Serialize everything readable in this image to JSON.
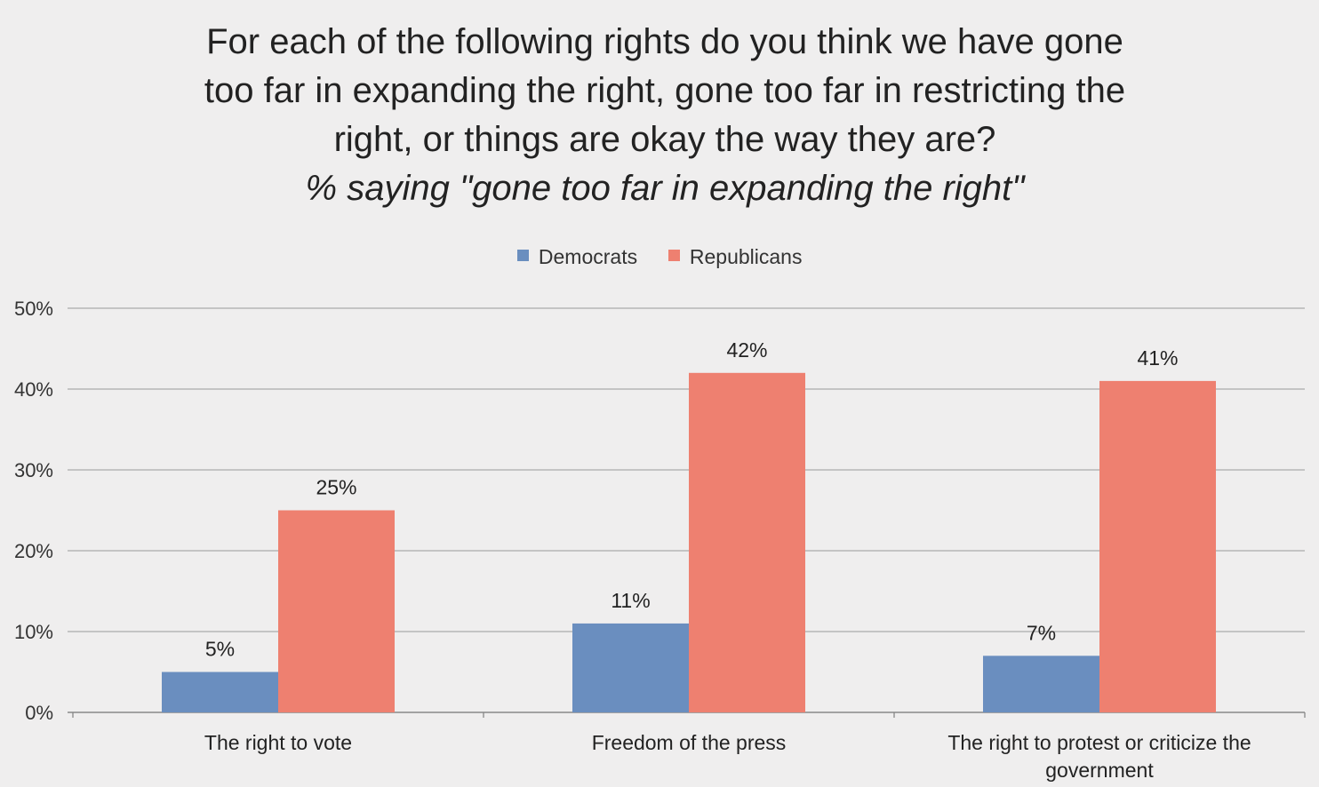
{
  "title_lines": [
    "For each of the following rights do you think we have gone",
    "too far in expanding the right, gone too far in restricting the",
    "right, or things are okay the way they are?"
  ],
  "subtitle": "% saying \"gone too far in expanding the right\"",
  "colors": {
    "background": "#efeeee",
    "democrats": "#6a8ebf",
    "republicans": "#ee8070",
    "gridline": "#aaaaaa",
    "text": "#222222"
  },
  "chart_data": {
    "type": "bar",
    "title": "For each of the following rights do you think we have gone too far in expanding the right, gone too far in restricting the right, or things are okay the way they are?",
    "subtitle": "% saying \"gone too far in expanding the right\"",
    "categories": [
      [
        "The right to vote"
      ],
      [
        "Freedom of the press"
      ],
      [
        "The right to protest or criticize the",
        "government"
      ]
    ],
    "series": [
      {
        "name": "Democrats",
        "values": [
          5,
          11,
          7
        ],
        "labels": [
          "5%",
          "11%",
          "7%"
        ],
        "color": "#6a8ebf"
      },
      {
        "name": "Republicans",
        "values": [
          25,
          42,
          41
        ],
        "labels": [
          "25%",
          "42%",
          "41%"
        ],
        "color": "#ee8070"
      }
    ],
    "ylim": [
      0,
      50
    ],
    "yticks": [
      0,
      10,
      20,
      30,
      40,
      50
    ],
    "ytick_labels": [
      "0%",
      "10%",
      "20%",
      "30%",
      "40%",
      "50%"
    ],
    "xlabel": "",
    "ylabel": "",
    "grid": true,
    "legend_position": "top-center"
  }
}
